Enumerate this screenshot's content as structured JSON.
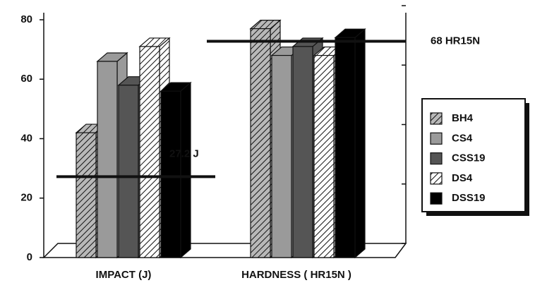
{
  "chart_data": {
    "type": "bar3d",
    "categories": [
      "IMPACT (J)",
      "HARDNESS ( HR15N )"
    ],
    "series": [
      {
        "name": "BH4",
        "color": "#b8b8b8",
        "hatch": true,
        "values": [
          42,
          77
        ]
      },
      {
        "name": "CS4",
        "color": "#9a9a9a",
        "hatch": false,
        "values": [
          66,
          68
        ]
      },
      {
        "name": "CSS19",
        "color": "#555555",
        "hatch": false,
        "values": [
          58,
          71
        ]
      },
      {
        "name": "DS4",
        "color": "#ffffff",
        "hatch": true,
        "values": [
          71,
          68
        ]
      },
      {
        "name": "DSS19",
        "color": "#000000",
        "hatch": false,
        "values": [
          56,
          74
        ]
      }
    ],
    "annotations": [
      {
        "text": "27.2 J",
        "value": 27.2
      },
      {
        "text": "68 HR15N",
        "value": 68
      }
    ],
    "ylim": [
      0,
      80
    ],
    "yticks": [
      0,
      20,
      40,
      60,
      80
    ]
  }
}
